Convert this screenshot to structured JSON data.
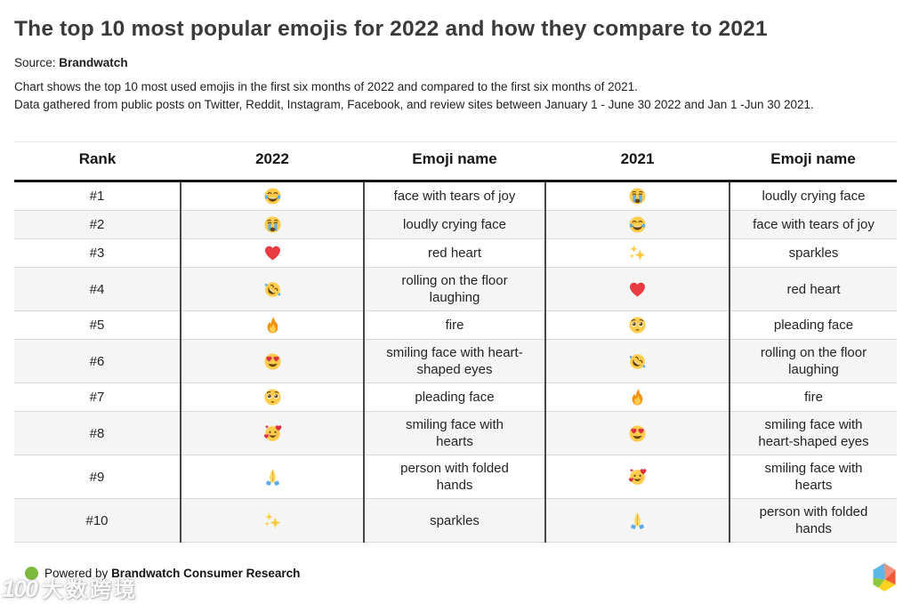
{
  "header": {
    "title": "The top 10 most popular emojis for 2022 and how they compare to 2021",
    "source_label": "Source:",
    "source_name": "Brandwatch",
    "description_line1": "Chart shows the top 10 most used emojis in the first six months of 2022 and compared to the first six months of 2021.",
    "description_line2": "Data gathered from public posts on Twitter, Reddit, Instagram, Facebook, and review sites between January 1 - June 30 2022 and Jan 1 -Jun 30 2021."
  },
  "chart_data": {
    "type": "table",
    "title": "The top 10 most popular emojis for 2022 and how they compare to 2021",
    "columns": [
      "Rank",
      "2022",
      "Emoji name",
      "2021",
      "Emoji name"
    ],
    "rows": [
      {
        "rank": "#1",
        "emoji_2022": "face-with-tears-of-joy",
        "name_2022": "face with tears of joy",
        "emoji_2021": "loudly-crying-face",
        "name_2021": "loudly crying face"
      },
      {
        "rank": "#2",
        "emoji_2022": "loudly-crying-face",
        "name_2022": "loudly crying face",
        "emoji_2021": "face-with-tears-of-joy",
        "name_2021": "face with tears of joy"
      },
      {
        "rank": "#3",
        "emoji_2022": "red-heart",
        "name_2022": "red heart",
        "emoji_2021": "sparkles",
        "name_2021": "sparkles"
      },
      {
        "rank": "#4",
        "emoji_2022": "rolling-on-the-floor-laughing",
        "name_2022": "rolling on the floor\nlaughing",
        "emoji_2021": "red-heart",
        "name_2021": "red heart"
      },
      {
        "rank": "#5",
        "emoji_2022": "fire",
        "name_2022": "fire",
        "emoji_2021": "pleading-face",
        "name_2021": "pleading face"
      },
      {
        "rank": "#6",
        "emoji_2022": "smiling-face-with-heart-shaped-eyes",
        "name_2022": "smiling face with heart-\nshaped eyes",
        "emoji_2021": "rolling-on-the-floor-laughing",
        "name_2021": "rolling on the floor\nlaughing"
      },
      {
        "rank": "#7",
        "emoji_2022": "pleading-face",
        "name_2022": "pleading face",
        "emoji_2021": "fire",
        "name_2021": "fire"
      },
      {
        "rank": "#8",
        "emoji_2022": "smiling-face-with-hearts",
        "name_2022": "smiling face with\nhearts",
        "emoji_2021": "smiling-face-with-heart-shaped-eyes",
        "name_2021": "smiling face with\nheart-shaped eyes"
      },
      {
        "rank": "#9",
        "emoji_2022": "person-with-folded-hands",
        "name_2022": "person with folded\nhands",
        "emoji_2021": "smiling-face-with-hearts",
        "name_2021": "smiling face with\nhearts"
      },
      {
        "rank": "#10",
        "emoji_2022": "sparkles",
        "name_2022": "sparkles",
        "emoji_2021": "person-with-folded-hands",
        "name_2021": "person with folded\nhands"
      }
    ]
  },
  "footer": {
    "powered_by": "Powered by",
    "brand": "Brandwatch Consumer Research"
  },
  "watermark": {
    "logo": "100",
    "text": "大数跨境"
  },
  "colors": {
    "accent_green": "#7cb93e",
    "row_stripe": "#f5f5f5",
    "column_divider": "#474747",
    "header_rule": "#151515",
    "emoji_yellow": "#FFCC4D",
    "heart_red": "#DD2E44",
    "tear_blue": "#5DADEC"
  }
}
